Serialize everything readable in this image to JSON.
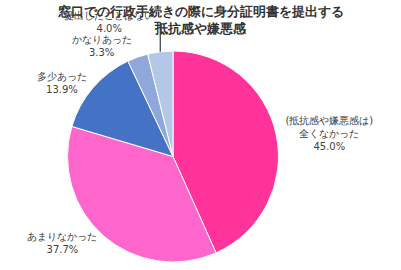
{
  "chart_data": {
    "type": "pie",
    "title": "窓口での行政手続きの際に身分証明書を提出する\n抵抗感や嫌悪感",
    "categories": [
      "(抵抗感や嫌悪感は)\n全くなかった",
      "あまりなかった",
      "多少あった",
      "かなりあった",
      "提出したことはない"
    ],
    "values": [
      45.0,
      37.7,
      13.9,
      3.3,
      4.0
    ],
    "value_labels": [
      "45.0%",
      "37.7%",
      "13.9%",
      "3.3%",
      "4.0%"
    ],
    "colors": [
      "#ff3399",
      "#ff66cc",
      "#4472c4",
      "#8fa8dc",
      "#b4c7e7"
    ],
    "data_labels": true
  }
}
